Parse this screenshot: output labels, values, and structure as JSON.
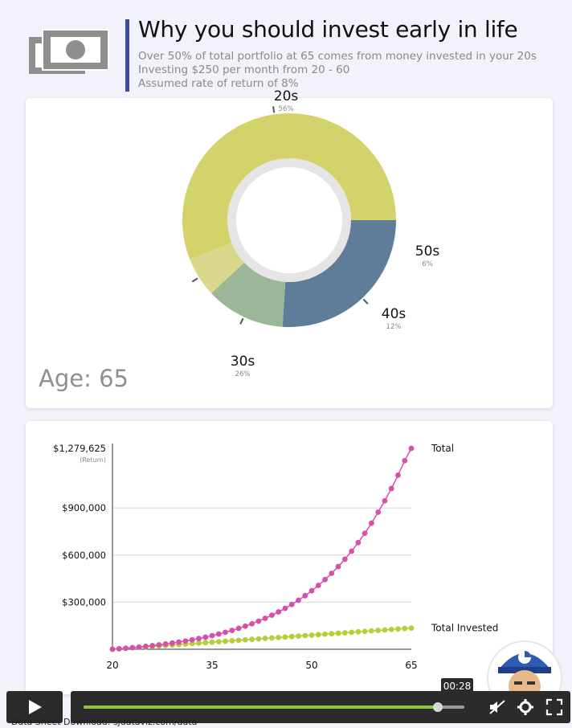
{
  "header": {
    "title": "Why you should invest early in life",
    "subtitle_lines": [
      "Over 50% of total portfolio at 65 comes from money invested in your 20s",
      "Investing $250 per month from 20 - 60",
      "Assumed rate of return of 8%"
    ],
    "icon": "money-icon",
    "accent_color": "#3f4d9a"
  },
  "donut_panel": {
    "age_label": "Age: 65"
  },
  "chart_data": [
    {
      "type": "pie",
      "variant": "donut",
      "slices": [
        {
          "label": "20s",
          "percent_label": "56%",
          "value": 56,
          "color": "#d4d36b"
        },
        {
          "label": "30s",
          "percent_label": "26%",
          "value": 26,
          "color": "#5f7d98"
        },
        {
          "label": "40s",
          "percent_label": "12%",
          "value": 12,
          "color": "#9cb69a"
        },
        {
          "label": "50s",
          "percent_label": "6%",
          "value": 6,
          "color": "#d8d78c"
        }
      ]
    },
    {
      "type": "line",
      "x": [
        20,
        21,
        22,
        23,
        24,
        25,
        26,
        27,
        28,
        29,
        30,
        31,
        32,
        33,
        34,
        35,
        36,
        37,
        38,
        39,
        40,
        41,
        42,
        43,
        44,
        45,
        46,
        47,
        48,
        49,
        50,
        51,
        52,
        53,
        54,
        55,
        56,
        57,
        58,
        59,
        60,
        61,
        62,
        63,
        64,
        65
      ],
      "xlim": [
        20,
        65
      ],
      "ylim": [
        0,
        1279625
      ],
      "xticks": [
        "20",
        "35",
        "50",
        "65"
      ],
      "yticks": [
        {
          "value": 300000,
          "label": "$300,000"
        },
        {
          "value": 600000,
          "label": "$600,000"
        },
        {
          "value": 900000,
          "label": "$900,000"
        },
        {
          "value": 1279625,
          "label": "$1,279,625"
        }
      ],
      "top_tick_note": "(Return)",
      "grid": true,
      "series": [
        {
          "name": "Total",
          "color": "#d64fa9",
          "values": [
            0,
            3113,
            6484,
            10135,
            14089,
            18372,
            23010,
            28033,
            33473,
            39364,
            45745,
            52656,
            60141,
            68246,
            77024,
            86531,
            96827,
            107978,
            120054,
            133133,
            147297,
            162637,
            179250,
            197242,
            216728,
            237831,
            260686,
            285438,
            312244,
            341275,
            372716,
            406765,
            443641,
            483578,
            526830,
            573671,
            624401,
            679342,
            738843,
            803282,
            873069,
            945515,
            1023977,
            1108951,
            1200977,
            1279625
          ]
        },
        {
          "name": "Total Invested",
          "color": "#b9cc3a",
          "values": [
            0,
            3000,
            6000,
            9000,
            12000,
            15000,
            18000,
            21000,
            24000,
            27000,
            30000,
            33000,
            36000,
            39000,
            42000,
            45000,
            48000,
            51000,
            54000,
            57000,
            60000,
            63000,
            66000,
            69000,
            72000,
            75000,
            78000,
            81000,
            84000,
            87000,
            90000,
            93000,
            96000,
            99000,
            102000,
            105000,
            108000,
            111000,
            114000,
            117000,
            120000,
            123000,
            126000,
            129000,
            132000,
            135000
          ]
        }
      ]
    }
  ],
  "player": {
    "time": "00:28",
    "progress": 0.93,
    "play_icon": "play-icon",
    "controls": [
      "no-sound-icon",
      "gear-icon",
      "fullscreen-icon"
    ],
    "accent_color": "#8cc63f"
  },
  "footer": {
    "note": "Data Sheet Download: sjdataviz.com/data"
  }
}
